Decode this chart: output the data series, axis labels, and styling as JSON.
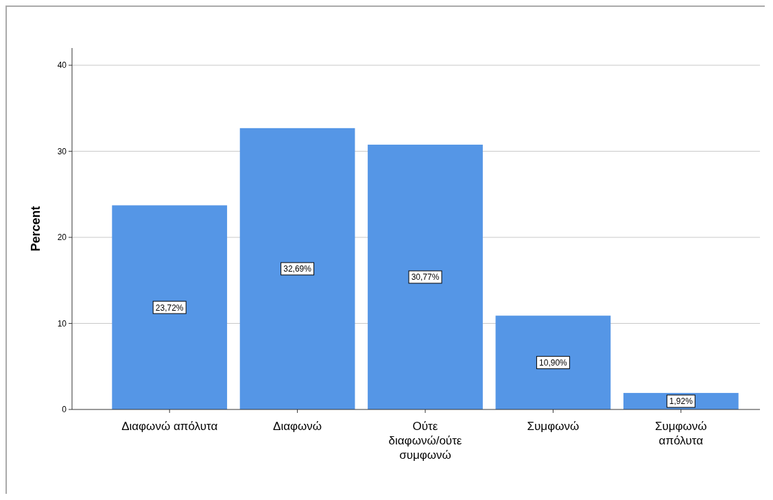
{
  "chart_data": {
    "type": "bar",
    "ylabel": "Percent",
    "categories": [
      "Διαφωνώ απόλυτα",
      "Διαφωνώ",
      "Ούτε\nδιαφωνώ/ούτε\nσυμφωνώ",
      "Συμφωνώ",
      "Συμφωνώ\nαπόλυτα"
    ],
    "values": [
      23.72,
      32.69,
      30.77,
      10.9,
      1.92
    ],
    "value_labels": [
      "23,72%",
      "32,69%",
      "30,77%",
      "10,90%",
      "1,92%"
    ],
    "color": "#5596e6",
    "ylim": [
      0,
      42
    ],
    "yticks": [
      0,
      10,
      20,
      30,
      40
    ],
    "grid": "y"
  }
}
